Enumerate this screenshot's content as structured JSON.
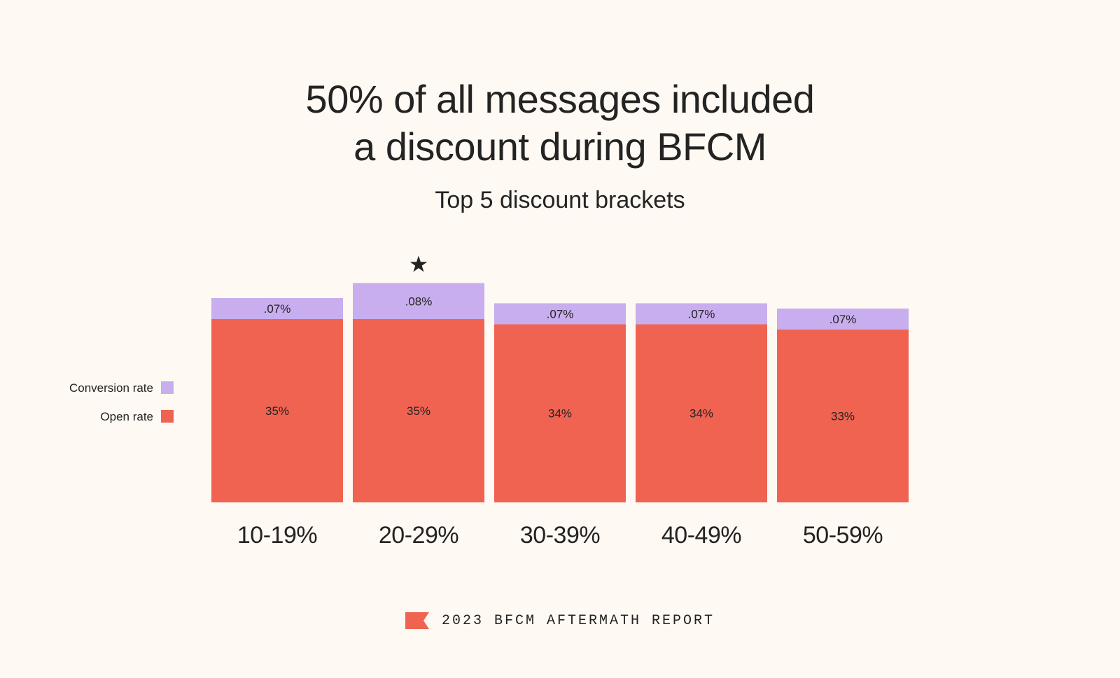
{
  "title_line1": "50% of all messages included",
  "title_line2": "a discount during BFCM",
  "subtitle": "Top 5 discount brackets",
  "footer": "2023 BFCM AFTERMATH REPORT",
  "highlight_icon": "star-icon",
  "colors": {
    "background": "#fef9f2",
    "conversion": "#c8aeee",
    "open": "#f06351",
    "text": "#232323"
  },
  "chart_data": {
    "type": "bar",
    "stacked": true,
    "categories": [
      "10-19%",
      "20-29%",
      "30-39%",
      "40-49%",
      "50-59%"
    ],
    "series": [
      {
        "name": "Open rate",
        "values": [
          35,
          35,
          34,
          34,
          33
        ],
        "labels": [
          "35%",
          "35%",
          "34%",
          "34%",
          "33%"
        ],
        "color": "#f06351"
      },
      {
        "name": "Conversion rate",
        "values": [
          0.07,
          0.08,
          0.07,
          0.07,
          0.07
        ],
        "labels": [
          ".07%",
          ".08%",
          ".07%",
          ".07%",
          ".07%"
        ],
        "color": "#c8aeee"
      }
    ],
    "highlight_category": "20-29%",
    "legend": [
      "Conversion rate",
      "Open rate"
    ],
    "legend_position": "left",
    "grid": false
  }
}
